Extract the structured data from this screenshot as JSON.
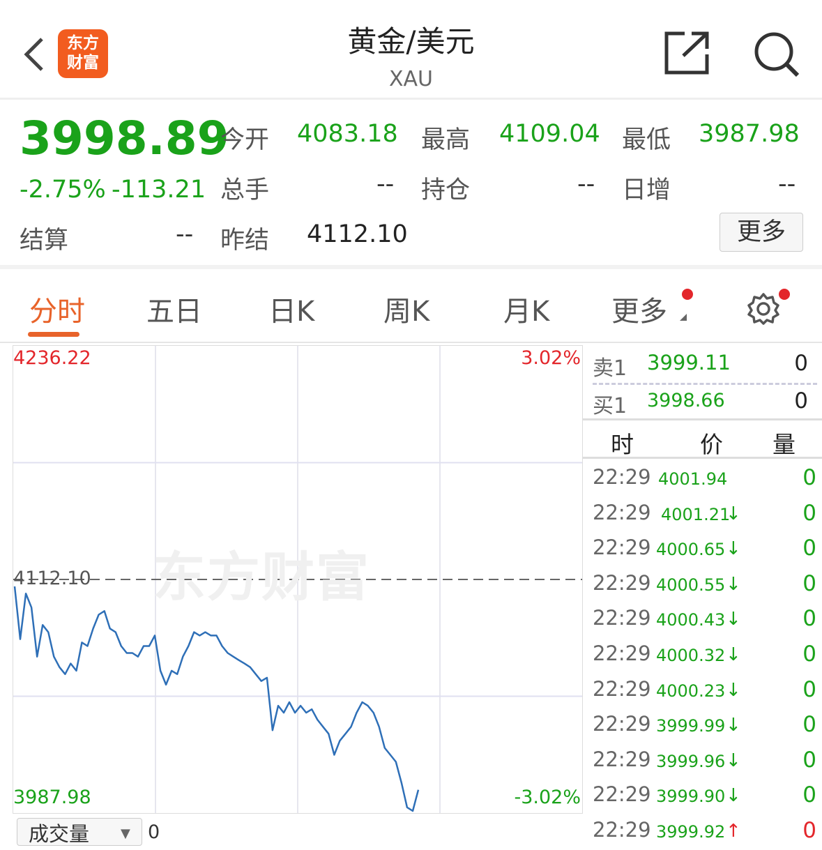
{
  "header": {
    "title": "黄金/美元",
    "subtitle": "XAU",
    "logo": "东方财富",
    "icons": [
      "back-chevron-icon",
      "share-icon",
      "search-icon"
    ]
  },
  "quote": {
    "price": "3998.89",
    "change_pct": "-2.75%",
    "change": "-113.21",
    "fields": [
      {
        "label": "今开",
        "value": "4083.18"
      },
      {
        "label": "最高",
        "value": "4109.04"
      },
      {
        "label": "最低",
        "value": "3987.98"
      },
      {
        "label": "总手",
        "value": "--"
      },
      {
        "label": "持仓",
        "value": "--"
      },
      {
        "label": "日增",
        "value": "--"
      },
      {
        "label": "结算",
        "value": "--"
      },
      {
        "label": "昨结",
        "value": "4112.10"
      }
    ],
    "more_label": "更多"
  },
  "tabs": [
    {
      "label": "分时",
      "active": true
    },
    {
      "label": "五日"
    },
    {
      "label": "日K"
    },
    {
      "label": "周K"
    },
    {
      "label": "月K"
    },
    {
      "label": "更多"
    }
  ],
  "colors": {
    "up": "#e3262b",
    "down": "#1aa21a",
    "accent": "#e8632a",
    "line": "#2e6fb7"
  },
  "chart": {
    "top_label": "4236.22",
    "top_pct": "3.02%",
    "bottom_label": "3987.98",
    "bottom_pct": "-3.02%",
    "ref_label": "4112.10",
    "watermark": "东方财富",
    "volume_selector": "成交量",
    "volume_value": "0"
  },
  "chart_data": {
    "type": "line",
    "ylim": [
      3987.98,
      4236.22
    ],
    "reference": 4112.1,
    "values": [
      4108.4,
      4080.4,
      4104.6,
      4097.2,
      4071.1,
      4087.9,
      4084.1,
      4071.1,
      4065.5,
      4061.8,
      4067.4,
      4063.6,
      4078.6,
      4076.7,
      4086.0,
      4093.4,
      4095.3,
      4086.0,
      4084.1,
      4076.7,
      4073.0,
      4073.0,
      4071.1,
      4076.7,
      4076.7,
      4082.3,
      4063.6,
      4056.2,
      4063.6,
      4061.8,
      4071.1,
      4076.7,
      4084.1,
      4082.3,
      4084.1,
      4082.3,
      4082.3,
      4076.7,
      4073.0,
      4071.1,
      4069.2,
      4067.4,
      4065.5,
      4061.8,
      4058.1,
      4059.9,
      4032.0,
      4045.0,
      4041.3,
      4046.9,
      4041.3,
      4045.0,
      4041.3,
      4043.1,
      4037.6,
      4033.8,
      4030.1,
      4018.9,
      4026.4,
      4030.1,
      4033.8,
      4041.3,
      4046.9,
      4045.0,
      4041.3,
      4033.8,
      4022.6,
      4018.9,
      4015.2,
      4004.0,
      3991.0,
      3989.1,
      4000.3
    ]
  },
  "orderbook": {
    "sell": {
      "label": "卖1",
      "price": "3999.11",
      "qty": "0"
    },
    "buy": {
      "label": "买1",
      "price": "3998.66",
      "qty": "0"
    }
  },
  "ticks": {
    "headers": [
      "时",
      "价",
      "量"
    ],
    "rows": [
      {
        "time": "22:29",
        "price": "4001.94",
        "arrow": "",
        "qty": "0"
      },
      {
        "time": "22:29",
        "price": "4001.21",
        "arrow": "↓",
        "qty": "0"
      },
      {
        "time": "22:29",
        "price": "4000.65",
        "arrow": "↓",
        "qty": "0"
      },
      {
        "time": "22:29",
        "price": "4000.55",
        "arrow": "↓",
        "qty": "0"
      },
      {
        "time": "22:29",
        "price": "4000.43",
        "arrow": "↓",
        "qty": "0"
      },
      {
        "time": "22:29",
        "price": "4000.32",
        "arrow": "↓",
        "qty": "0"
      },
      {
        "time": "22:29",
        "price": "4000.23",
        "arrow": "↓",
        "qty": "0"
      },
      {
        "time": "22:29",
        "price": "3999.99",
        "arrow": "↓",
        "qty": "0"
      },
      {
        "time": "22:29",
        "price": "3999.96",
        "arrow": "↓",
        "qty": "0"
      },
      {
        "time": "22:29",
        "price": "3999.90",
        "arrow": "↓",
        "qty": "0"
      },
      {
        "time": "22:29",
        "price": "3999.92",
        "arrow": "↑",
        "qty": "0"
      }
    ]
  }
}
